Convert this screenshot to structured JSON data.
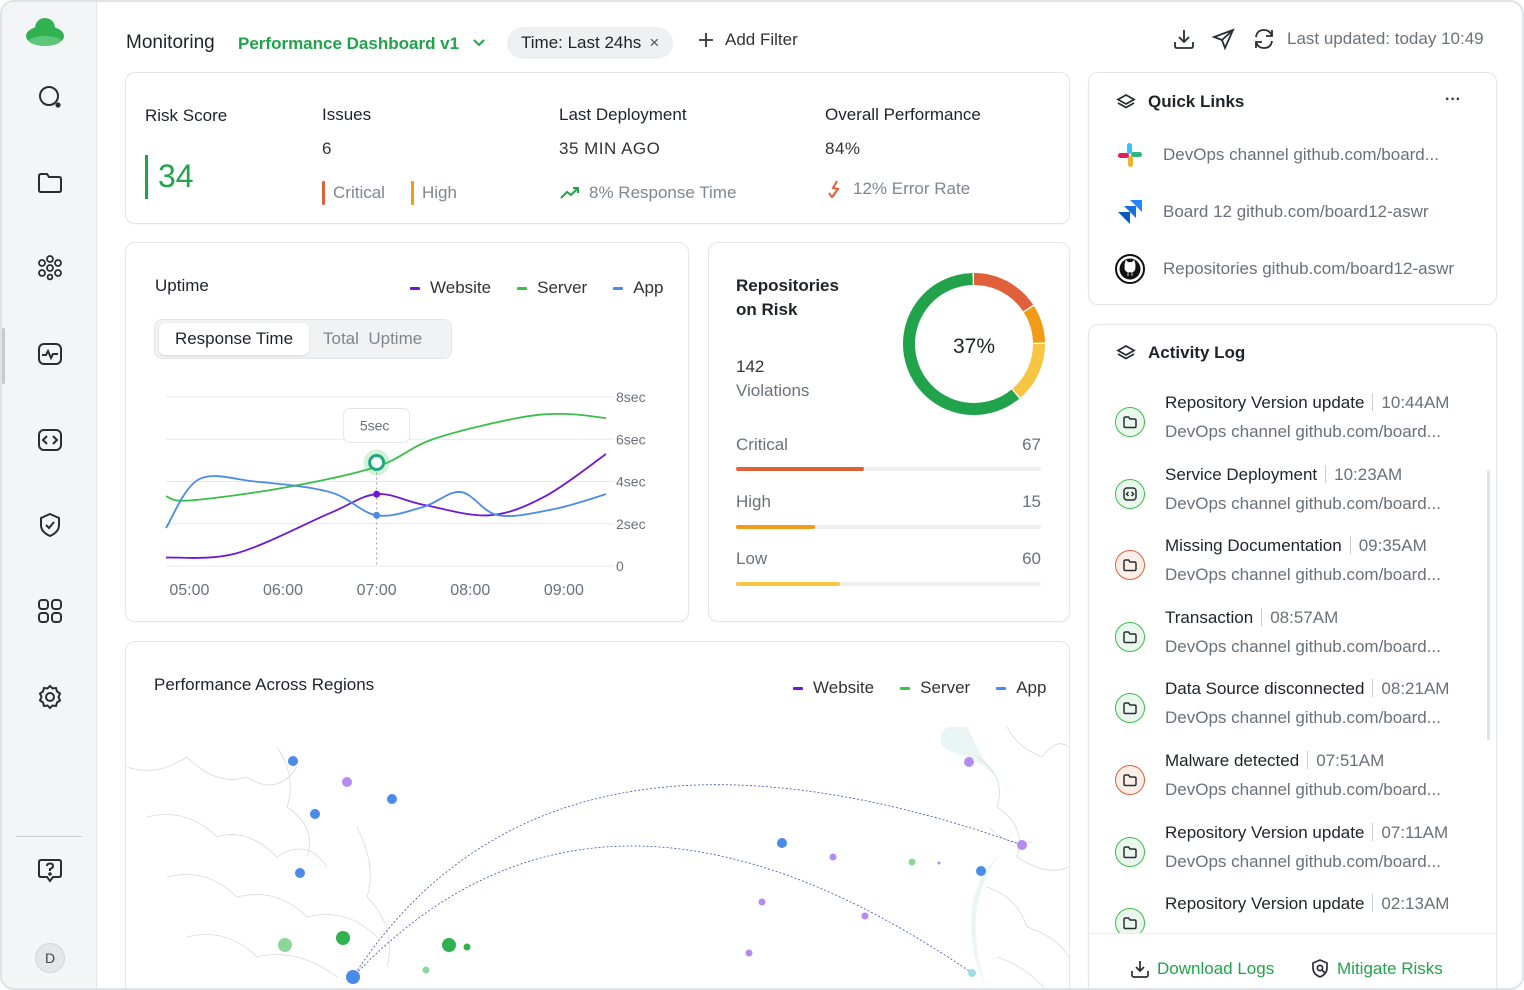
{
  "colors": {
    "brand_green": "#20a34a",
    "website": "#6d18d6",
    "server": "#3cbe4c",
    "app": "#4a8ae8",
    "critical": "#e0603a",
    "high": "#f29b16",
    "low": "#f8c542"
  },
  "sidebar": {
    "logo": "cloud-logo",
    "items": [
      {
        "icon": "search-icon"
      },
      {
        "icon": "folder-icon"
      },
      {
        "icon": "team-icon"
      },
      {
        "icon": "activity-icon"
      },
      {
        "icon": "code-icon"
      },
      {
        "icon": "shield-icon"
      },
      {
        "icon": "apps-grid-icon"
      },
      {
        "icon": "settings-icon"
      },
      {
        "icon": "help-icon"
      }
    ],
    "avatar_initial": "D"
  },
  "header": {
    "title": "Monitoring",
    "dashboard": "Performance Dashboard v1",
    "time_filter": "Time: Last 24hs",
    "time_filter_clear": "×",
    "add_filter": "Add Filter",
    "last_updated": "Last updated: today 10:49",
    "icons": [
      "download-icon",
      "send-icon",
      "refresh-icon"
    ]
  },
  "stats": {
    "risk_score_label": "Risk Score",
    "risk_score_value": "34",
    "issues_label": "Issues",
    "issues_value": "6",
    "issues_critical": "Critical",
    "issues_high": "High",
    "deployment_label": "Last Deployment",
    "deployment_value": "35 MIN AGO",
    "deployment_sub": "8% Response Time",
    "performance_label": "Overall Performance",
    "performance_value": "84%",
    "performance_sub": "12% Error Rate"
  },
  "uptime": {
    "title": "Uptime",
    "legend": [
      "Website",
      "Server",
      "App"
    ],
    "toggle_active": "Response Time",
    "toggle_inactive": "Total  Uptime",
    "tooltip": "5sec"
  },
  "chart_data": {
    "type": "line",
    "x": [
      "05:00",
      "06:00",
      "07:00",
      "08:00",
      "09:00"
    ],
    "yticks": [
      "8sec",
      "6sec",
      "4sec",
      "2sec",
      "0"
    ],
    "ylim": [
      0,
      8
    ],
    "series": [
      {
        "name": "Website",
        "color": "#6d18d6",
        "points": [
          [
            4.75,
            0.4
          ],
          [
            5.5,
            0.6
          ],
          [
            6.5,
            2.5
          ],
          [
            7.0,
            3.4
          ],
          [
            7.5,
            2.9
          ],
          [
            8.2,
            2.4
          ],
          [
            8.8,
            3.3
          ],
          [
            9.45,
            5.3
          ]
        ]
      },
      {
        "name": "Server",
        "color": "#3cbe4c",
        "points": [
          [
            4.75,
            3.3
          ],
          [
            5.0,
            3.1
          ],
          [
            6.0,
            3.7
          ],
          [
            7.0,
            4.7
          ],
          [
            7.6,
            6.0
          ],
          [
            8.5,
            7.0
          ],
          [
            9.0,
            7.2
          ],
          [
            9.45,
            7.0
          ]
        ]
      },
      {
        "name": "App",
        "color": "#4a8ae8",
        "points": [
          [
            4.75,
            1.8
          ],
          [
            5.1,
            4.1
          ],
          [
            5.7,
            4.0
          ],
          [
            6.5,
            3.5
          ],
          [
            7.0,
            2.4
          ],
          [
            7.5,
            2.8
          ],
          [
            7.9,
            3.5
          ],
          [
            8.3,
            2.4
          ],
          [
            8.9,
            2.7
          ],
          [
            9.45,
            3.4
          ]
        ]
      }
    ],
    "highlight_x": 7.0,
    "highlight_value": 4.9
  },
  "repositories": {
    "title_line1": "Repositories",
    "title_line2": "on Risk",
    "count": "142",
    "count_label": "Violations",
    "percent": "37%",
    "rows": [
      {
        "label": "Critical",
        "value": "67",
        "fraction": 0.42
      },
      {
        "label": "High",
        "value": "15",
        "fraction": 0.26
      },
      {
        "label": "Low",
        "value": "60",
        "fraction": 0.34
      }
    ],
    "donut": [
      {
        "name": "Critical",
        "fraction": 0.16
      },
      {
        "name": "High",
        "fraction": 0.09
      },
      {
        "name": "Low",
        "fraction": 0.14
      },
      {
        "name": "Ok",
        "fraction": 0.61
      }
    ]
  },
  "regions": {
    "title": "Performance Across Regions",
    "legend": [
      "Website",
      "Server",
      "App"
    ]
  },
  "quick_links": {
    "title": "Quick Links",
    "more": "···",
    "items": [
      {
        "icon": "slack-icon",
        "text": "DevOps channel github.com/board..."
      },
      {
        "icon": "jira-icon",
        "text": "Board 12 github.com/board12-aswr"
      },
      {
        "icon": "github-icon",
        "text": "Repositories github.com/board12-aswr"
      }
    ]
  },
  "activity": {
    "title": "Activity Log",
    "items": [
      {
        "title": "Repository Version update",
        "time": "10:44AM",
        "sub": "DevOps channel github.com/board...",
        "kind": "folder",
        "tone": "green"
      },
      {
        "title": "Service Deployment",
        "time": "10:23AM",
        "sub": "DevOps channel github.com/board...",
        "kind": "code",
        "tone": "green"
      },
      {
        "title": "Missing Documentation",
        "time": "09:35AM",
        "sub": "DevOps channel github.com/board...",
        "kind": "folder",
        "tone": "red"
      },
      {
        "title": "Transaction",
        "time": "08:57AM",
        "sub": "DevOps channel github.com/board...",
        "kind": "folder",
        "tone": "green"
      },
      {
        "title": "Data Source disconnected",
        "time": "08:21AM",
        "sub": "DevOps channel github.com/board...",
        "kind": "folder",
        "tone": "green"
      },
      {
        "title": "Malware detected",
        "time": "07:51AM",
        "sub": "DevOps channel github.com/board...",
        "kind": "folder",
        "tone": "red"
      },
      {
        "title": "Repository Version update",
        "time": "07:11AM",
        "sub": "DevOps channel github.com/board...",
        "kind": "folder",
        "tone": "green"
      },
      {
        "title": "Repository Version update",
        "time": "02:13AM",
        "sub": "",
        "kind": "folder",
        "tone": "green"
      }
    ],
    "download_logs": "Download Logs",
    "mitigate_risks": "Mitigate Risks"
  }
}
